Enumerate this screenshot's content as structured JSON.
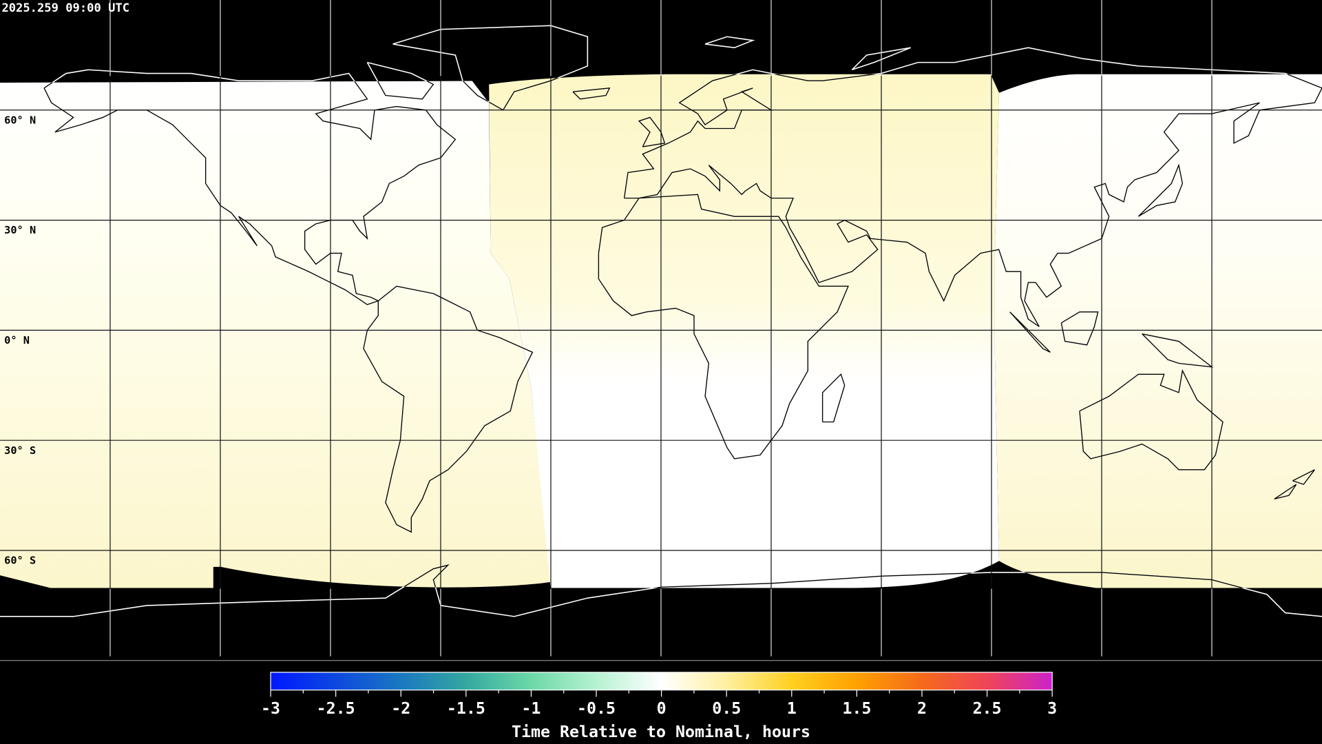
{
  "title": "2025.259 09:00 UTC",
  "map": {
    "projection": "equirectangular",
    "lon_range": [
      -180,
      180
    ],
    "lat_range": [
      -90,
      90
    ],
    "grid_lons": [
      -150,
      -120,
      -90,
      -60,
      -30,
      0,
      30,
      60,
      90,
      120,
      150
    ],
    "grid_lats": [
      60,
      30,
      0,
      -30,
      -60
    ],
    "lat_labels": [
      "60° N",
      "30° N",
      "0° N",
      "30° S",
      "60° S"
    ],
    "background_color": "#000000",
    "colors": {
      "near_zero": "#ffffff",
      "slightly_positive": "#fdf8c8"
    }
  },
  "colorbar": {
    "label": "Time Relative to Nominal, hours",
    "range": [
      -3,
      3
    ],
    "tick_labels": [
      "-3",
      "-2.5",
      "-2",
      "-1.5",
      "-1",
      "-0.5",
      "0",
      "0.5",
      "1",
      "1.5",
      "2",
      "2.5",
      "3"
    ],
    "stops": [
      {
        "value": -3,
        "color": "#0018ff"
      },
      {
        "value": -2,
        "color": "#1a78c0"
      },
      {
        "value": -1.5,
        "color": "#34a8a0"
      },
      {
        "value": -1,
        "color": "#6cd8a8"
      },
      {
        "value": -0.5,
        "color": "#b6f2d2"
      },
      {
        "value": 0,
        "color": "#ffffff"
      },
      {
        "value": 0.5,
        "color": "#fff0a0"
      },
      {
        "value": 1,
        "color": "#ffd020"
      },
      {
        "value": 1.5,
        "color": "#ffa000"
      },
      {
        "value": 2,
        "color": "#f46a1a"
      },
      {
        "value": 2.5,
        "color": "#f04458"
      },
      {
        "value": 3,
        "color": "#cc22cc"
      }
    ]
  }
}
